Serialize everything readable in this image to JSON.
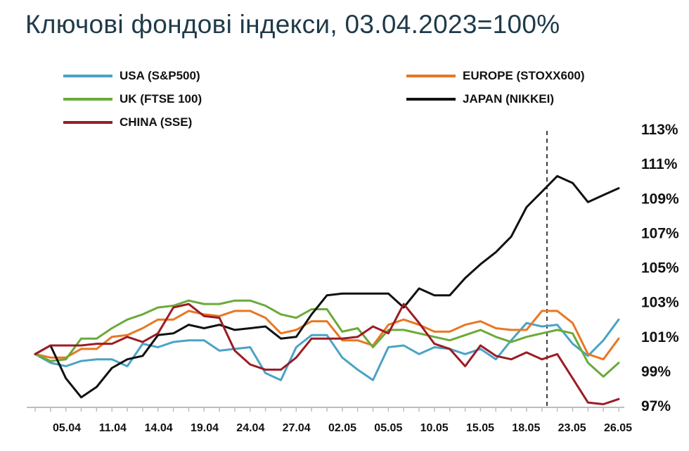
{
  "title": "Ключові фондові індекси, 03.04.2023=100%",
  "chart_data": {
    "type": "line",
    "title": "Ключові фондові індекси, 03.04.2023=100%",
    "x_labels": [
      "05.04",
      "11.04",
      "14.04",
      "19.04",
      "24.04",
      "27.04",
      "02.05",
      "05.05",
      "10.05",
      "15.05",
      "18.05",
      "23.05",
      "26.05"
    ],
    "y_ticks": [
      "113%",
      "111%",
      "109%",
      "107%",
      "105%",
      "103%",
      "101%",
      "99%",
      "97%"
    ],
    "ylim": [
      97,
      113
    ],
    "y_axis_position": "right",
    "grid": false,
    "legend_position": "top",
    "marker_line": {
      "after_point": 38,
      "style": "dashed"
    },
    "series": [
      {
        "name": "USA (S&P500)",
        "color": "#4aa3c6",
        "values": [
          100.0,
          99.5,
          99.3,
          99.6,
          99.7,
          99.7,
          99.3,
          100.6,
          100.4,
          100.7,
          100.8,
          100.8,
          100.2,
          100.3,
          100.4,
          98.9,
          98.5,
          100.4,
          101.1,
          101.1,
          99.8,
          99.1,
          98.5,
          100.4,
          100.5,
          100.0,
          100.4,
          100.3,
          100.0,
          100.3,
          99.7,
          100.8,
          101.8,
          101.6,
          101.7,
          100.6,
          99.9,
          100.8,
          102.0
        ]
      },
      {
        "name": "EUROPE (STOXX600)",
        "color": "#e87722",
        "values": [
          100.0,
          99.8,
          99.8,
          100.3,
          100.3,
          101.0,
          101.1,
          101.5,
          102.0,
          102.0,
          102.5,
          102.3,
          102.2,
          102.5,
          102.5,
          102.1,
          101.2,
          101.4,
          101.9,
          101.9,
          100.8,
          100.8,
          100.5,
          101.7,
          102.0,
          101.7,
          101.3,
          101.3,
          101.7,
          101.9,
          101.5,
          101.4,
          101.4,
          102.5,
          102.5,
          101.8,
          100.0,
          99.7,
          100.9
        ]
      },
      {
        "name": "UK (FTSE 100)",
        "color": "#6aaa3a",
        "values": [
          100.0,
          99.6,
          99.7,
          100.9,
          100.9,
          101.5,
          102.0,
          102.3,
          102.7,
          102.8,
          103.1,
          102.9,
          102.9,
          103.1,
          103.1,
          102.8,
          102.3,
          102.1,
          102.6,
          102.6,
          101.3,
          101.5,
          100.4,
          101.4,
          101.4,
          101.2,
          101.0,
          100.8,
          101.1,
          101.4,
          101.0,
          100.7,
          101.0,
          101.2,
          101.4,
          101.2,
          99.5,
          98.7,
          99.5
        ]
      },
      {
        "name": "JAPAN (NIKKEI)",
        "color": "#111111",
        "values": [
          100.0,
          100.5,
          98.6,
          97.5,
          98.1,
          99.2,
          99.7,
          99.9,
          101.1,
          101.2,
          101.7,
          101.5,
          101.7,
          101.4,
          101.5,
          101.6,
          100.9,
          101.0,
          102.3,
          103.4,
          103.5,
          103.5,
          103.5,
          103.5,
          102.7,
          103.8,
          103.4,
          103.4,
          104.4,
          105.2,
          105.9,
          106.8,
          108.5,
          109.4,
          110.3,
          109.9,
          108.8,
          109.2,
          109.6
        ]
      },
      {
        "name": "CHINA (SSE)",
        "color": "#9b1c24",
        "values": [
          100.0,
          100.5,
          100.5,
          100.5,
          100.6,
          100.6,
          101.0,
          100.7,
          101.2,
          102.7,
          102.9,
          102.2,
          102.1,
          100.2,
          99.4,
          99.1,
          99.1,
          99.8,
          100.9,
          100.9,
          100.9,
          101.0,
          101.6,
          101.2,
          102.9,
          101.8,
          100.6,
          100.3,
          99.3,
          100.5,
          99.9,
          99.7,
          100.1,
          99.7,
          100.0,
          98.6,
          97.2,
          97.1,
          97.4
        ]
      }
    ]
  }
}
